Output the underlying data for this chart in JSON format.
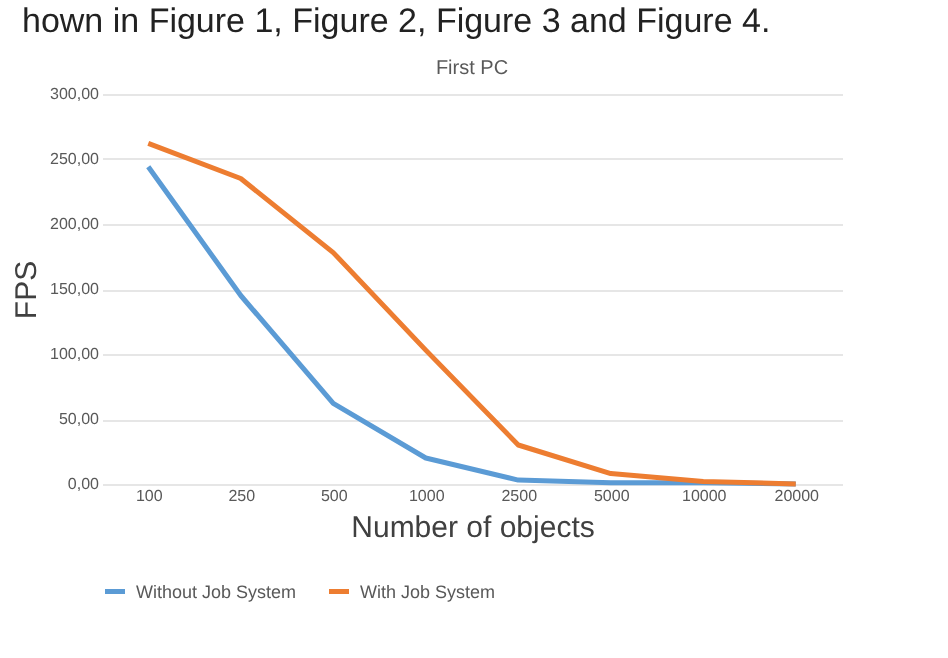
{
  "chart_data": {
    "type": "line",
    "title": "First PC",
    "xlabel": "Number of objects",
    "ylabel": "FPS",
    "annotations": [
      "hown in Figure 1, Figure 2, Figure 3 and Figure 4."
    ],
    "categories": [
      "100",
      "250",
      "500",
      "1000",
      "2500",
      "5000",
      "10000",
      "20000"
    ],
    "series": [
      {
        "name": "Without Job System",
        "color": "#5b9bd5",
        "values": [
          244,
          145,
          62,
          20,
          3,
          1,
          1,
          0
        ]
      },
      {
        "name": "With Job System",
        "color": "#ed7d31",
        "values": [
          262,
          235,
          178,
          103,
          30,
          8,
          2,
          0
        ]
      }
    ],
    "ylim": [
      0,
      300
    ],
    "yticks": [
      {
        "value": 0,
        "label": "0,00"
      },
      {
        "value": 50,
        "label": "50,00"
      },
      {
        "value": 100,
        "label": "100,00"
      },
      {
        "value": 150,
        "label": "150,00"
      },
      {
        "value": 200,
        "label": "200,00"
      },
      {
        "value": 250,
        "label": "250,00"
      },
      {
        "value": 300,
        "label": "300,00"
      }
    ],
    "grid": "y",
    "legend": "bottom",
    "marker": "none",
    "line_style": "solid"
  }
}
